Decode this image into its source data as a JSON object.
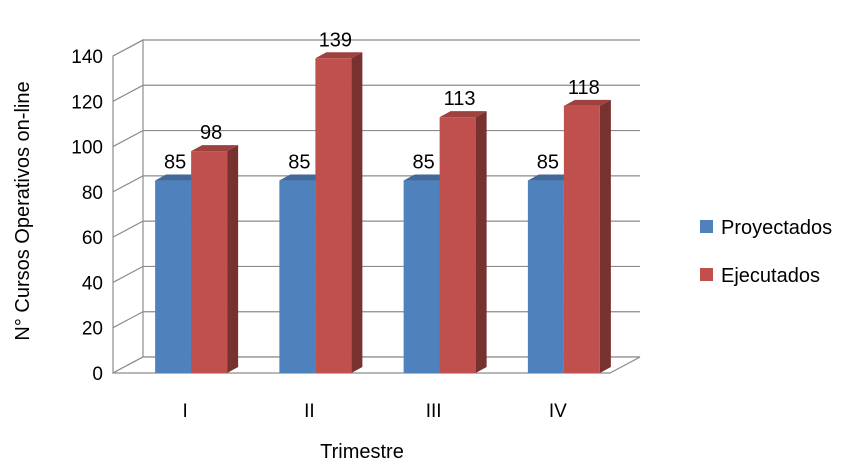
{
  "chart_data": {
    "type": "bar",
    "title": "",
    "xlabel": "Trimestre",
    "ylabel": "N° Cursos  Operativos on-line",
    "categories": [
      "I",
      "II",
      "III",
      "IV"
    ],
    "series": [
      {
        "name": "Proyectados",
        "values": [
          85,
          85,
          85,
          85
        ],
        "color": "#4F81BD"
      },
      {
        "name": "Ejecutados",
        "values": [
          98,
          139,
          113,
          118
        ],
        "color": "#C0504D"
      }
    ],
    "ylim": [
      0,
      140
    ],
    "yticks": [
      "0",
      "20",
      "40",
      "60",
      "80",
      "100",
      "120",
      "140"
    ],
    "data_labels": [
      [
        "85",
        "85",
        "85",
        "85"
      ],
      [
        "98",
        "139",
        "113",
        "118"
      ]
    ],
    "grid": true,
    "three_d": true,
    "legend_position": "right"
  }
}
